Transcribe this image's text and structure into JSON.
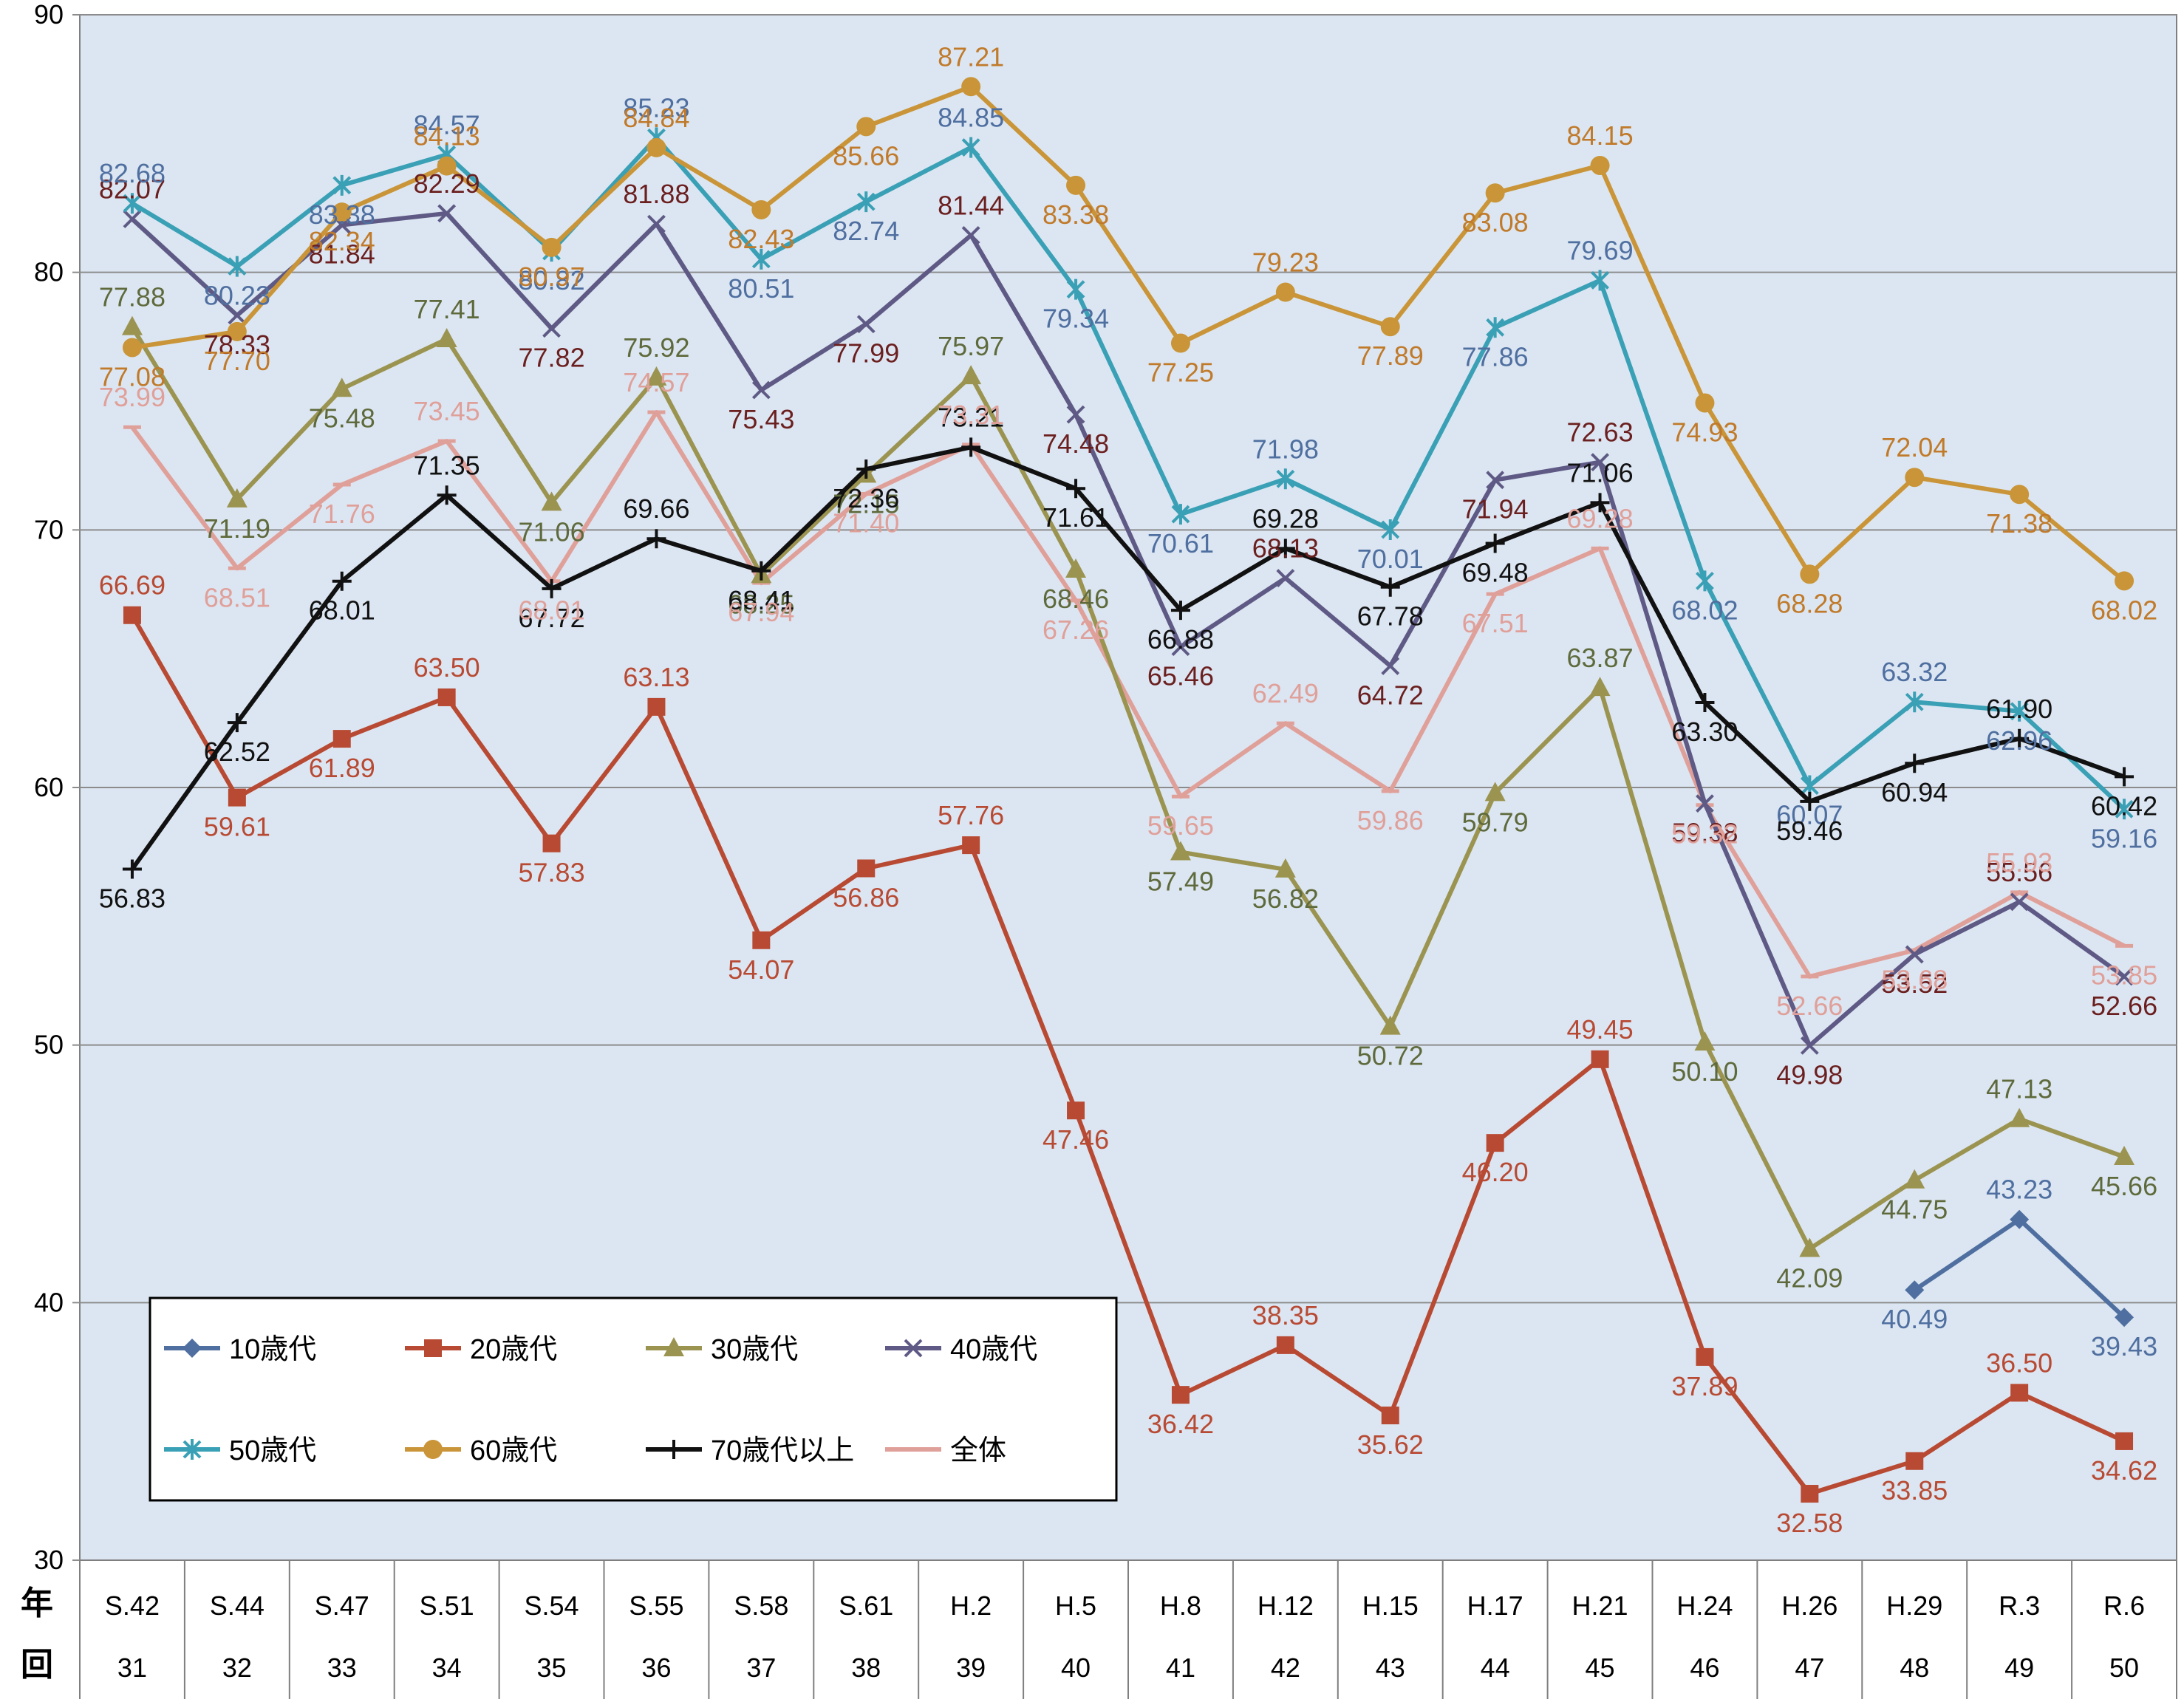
{
  "chart_data": {
    "type": "line",
    "x_labels": [
      "S.42",
      "S.44",
      "S.47",
      "S.51",
      "S.54",
      "S.55",
      "S.58",
      "S.61",
      "H.2",
      "H.5",
      "H.8",
      "H.12",
      "H.15",
      "H.17",
      "H.21",
      "H.24",
      "H.26",
      "H.29",
      "R.3",
      "R.6"
    ],
    "round_labels": [
      "31",
      "32",
      "33",
      "34",
      "35",
      "36",
      "37",
      "38",
      "39",
      "40",
      "41",
      "42",
      "43",
      "44",
      "45",
      "46",
      "47",
      "48",
      "49",
      "50"
    ],
    "row_headers": {
      "year": "年",
      "round": "回"
    },
    "ylim": [
      30,
      90
    ],
    "yticks": [
      30,
      40,
      50,
      60,
      70,
      80,
      90
    ],
    "grid": true,
    "legend_position": "lower-left",
    "series": [
      {
        "name": "10歳代",
        "color": "#4f6fa0",
        "marker": "diamond",
        "values": [
          null,
          null,
          null,
          null,
          null,
          null,
          null,
          null,
          null,
          null,
          null,
          null,
          null,
          null,
          null,
          null,
          null,
          40.49,
          43.23,
          39.43
        ],
        "labels": [
          null,
          null,
          null,
          null,
          null,
          null,
          null,
          null,
          null,
          null,
          null,
          null,
          null,
          null,
          null,
          null,
          null,
          "40.49",
          "43.23",
          "39.43"
        ]
      },
      {
        "name": "20歳代",
        "color": "#b84a33",
        "marker": "square",
        "values": [
          66.69,
          59.61,
          61.89,
          63.5,
          57.83,
          63.13,
          54.07,
          56.86,
          57.76,
          47.46,
          36.42,
          38.35,
          35.62,
          46.2,
          49.45,
          37.89,
          32.58,
          33.85,
          36.5,
          34.62
        ],
        "labels": [
          "66.69",
          "59.61",
          "61.89",
          "63.50",
          "57.83",
          "63.13",
          "54.07",
          "56.86",
          "57.76",
          "47.46",
          "36.42",
          "38.35",
          "35.62",
          "46.20",
          "49.45",
          "37.89",
          "32.58",
          "33.85",
          "36.50",
          "34.62"
        ]
      },
      {
        "name": "30歳代",
        "color": "#9b9451",
        "marker": "triangle",
        "values": [
          77.88,
          71.19,
          75.48,
          77.41,
          71.06,
          75.92,
          68.25,
          72.15,
          75.97,
          68.46,
          57.49,
          56.82,
          50.72,
          59.79,
          63.87,
          50.1,
          42.09,
          44.75,
          47.13,
          45.66
        ],
        "labels": [
          "77.88",
          "71.19",
          "75.48",
          "77.41",
          "71.06",
          "75.92",
          "68.25",
          "72.15",
          "75.97",
          "68.46",
          "57.49",
          "56.82",
          "50.72",
          "59.79",
          "63.87",
          "50.10",
          "42.09",
          "44.75",
          "47.13",
          "45.66"
        ]
      },
      {
        "name": "40歳代",
        "color": "#5e5a85",
        "marker": "x",
        "values": [
          82.07,
          78.33,
          81.84,
          82.29,
          77.82,
          81.88,
          75.43,
          77.99,
          81.44,
          74.48,
          65.46,
          68.13,
          64.72,
          71.94,
          72.63,
          59.38,
          49.98,
          53.52,
          55.56,
          52.66
        ],
        "labels": [
          "82.07",
          "78.33",
          "81.84",
          "82.29",
          "77.82",
          "81.88",
          "75.43",
          "77.99",
          "81.44",
          "74.48",
          "65.46",
          "68.13",
          "64.72",
          "71.94",
          "72.63",
          "59.38",
          "49.98",
          "53.52",
          "55.56",
          "52.66"
        ]
      },
      {
        "name": "50歳代",
        "color": "#3aa0b5",
        "marker": "star",
        "values": [
          82.68,
          80.23,
          83.38,
          84.57,
          80.82,
          85.23,
          80.51,
          82.74,
          84.85,
          79.34,
          70.61,
          71.98,
          70.01,
          77.86,
          79.69,
          68.02,
          60.07,
          63.32,
          62.96,
          59.16
        ],
        "labels": [
          "82.68",
          "80.23",
          "83.38",
          "84.57",
          "80.82",
          "85.23",
          "80.51",
          "82.74",
          "84.85",
          "79.34",
          "70.61",
          "71.98",
          "70.01",
          "77.86",
          "79.69",
          "68.02",
          "60.07",
          "63.32",
          "62.96",
          "59.16"
        ]
      },
      {
        "name": "60歳代",
        "color": "#c99538",
        "marker": "circle",
        "values": [
          77.08,
          77.7,
          82.34,
          84.13,
          80.97,
          84.84,
          82.43,
          85.66,
          87.21,
          83.38,
          77.25,
          79.23,
          77.89,
          83.08,
          84.15,
          74.93,
          68.28,
          72.04,
          71.38,
          68.02
        ],
        "labels": [
          "77.08",
          "77.70",
          "82.34",
          "84.13",
          "80.97",
          "84.84",
          "82.43",
          "85.66",
          "87.21",
          "83.38",
          "77.25",
          "79.23",
          "77.89",
          "83.08",
          "84.15",
          "74.93",
          "68.28",
          "72.04",
          "71.38",
          "68.02"
        ]
      },
      {
        "name": "70歳代以上",
        "color": "#111111",
        "marker": "plus",
        "values": [
          56.83,
          62.52,
          68.01,
          71.35,
          67.72,
          69.66,
          68.41,
          72.36,
          73.21,
          71.61,
          66.88,
          69.28,
          67.78,
          69.48,
          71.06,
          63.3,
          59.46,
          60.94,
          61.9,
          60.42
        ],
        "labels": [
          "56.83",
          "62.52",
          "68.01",
          "71.35",
          "67.72",
          "69.66",
          "68.41",
          "72.36",
          "73.21",
          "71.61",
          "66.88",
          "69.28",
          "67.78",
          "69.48",
          "71.06",
          "63.30",
          "59.46",
          "60.94",
          "61.90",
          "60.42"
        ]
      },
      {
        "name": "全体",
        "color": "#e0a09a",
        "marker": "dash",
        "values": [
          73.99,
          68.51,
          71.76,
          73.45,
          68.01,
          74.57,
          67.94,
          71.4,
          73.31,
          67.26,
          59.65,
          62.49,
          59.86,
          67.51,
          69.28,
          59.32,
          52.66,
          53.68,
          55.93,
          53.85
        ],
        "labels": [
          "73.99",
          "68.51",
          "71.76",
          "73.45",
          "68.01",
          "74.57",
          "67.94",
          "71.40",
          "73.31",
          "67.26",
          "59.65",
          "62.49",
          "59.86",
          "67.51",
          "69.28",
          "59.32",
          "52.66",
          "53.68",
          "55.93",
          "53.85"
        ]
      }
    ],
    "label_colors": {
      "10歳代": "#4f6fa0",
      "20歳代": "#b84a33",
      "30歳代": "#5f6a3c",
      "40歳代": "#6b1f1f",
      "50歳代": "#4f6fa0",
      "60歳代": "#c07a2a",
      "70歳代以上": "#111111",
      "全体": "#e0a09a"
    },
    "plot_background": "#dce6f2"
  }
}
